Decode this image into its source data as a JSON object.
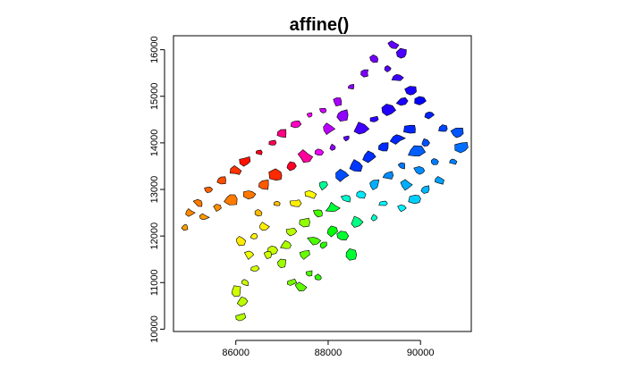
{
  "chart_data": {
    "type": "scatter",
    "title": "affine()",
    "xlabel": "",
    "ylabel": "",
    "xlim": [
      84650,
      91100
    ],
    "ylim": [
      9950,
      16300
    ],
    "x_ticks": [
      86000,
      88000,
      90000
    ],
    "x_tick_labels": [
      "86000",
      "88000",
      "90000"
    ],
    "y_ticks": [
      10000,
      11000,
      12000,
      13000,
      14000,
      15000,
      16000
    ],
    "y_tick_labels": [
      "10000",
      "11000",
      "12000",
      "13000",
      "14000",
      "15000",
      "16000"
    ],
    "grid": false,
    "legend": "none",
    "color_scheme": "rainbow hue",
    "series": [
      {
        "values": [
          [
            86100,
            10250
          ],
          [
            86150,
            10600
          ],
          [
            86000,
            10800
          ],
          [
            86200,
            11000
          ],
          [
            86400,
            11300
          ],
          [
            86300,
            11600
          ],
          [
            86100,
            11900
          ],
          [
            86400,
            12000
          ],
          [
            86600,
            12200
          ],
          [
            86800,
            11700
          ],
          [
            87000,
            11400
          ],
          [
            87200,
            11000
          ],
          [
            87400,
            10900
          ],
          [
            87600,
            11200
          ],
          [
            87800,
            11100
          ],
          [
            86700,
            11600
          ],
          [
            87100,
            11800
          ],
          [
            87500,
            11600
          ],
          [
            87700,
            11900
          ],
          [
            87900,
            11800
          ],
          [
            88100,
            12100
          ],
          [
            88300,
            12000
          ],
          [
            88600,
            12300
          ],
          [
            88500,
            11600
          ],
          [
            89000,
            12400
          ],
          [
            89200,
            12700
          ],
          [
            89600,
            12600
          ],
          [
            89900,
            12800
          ],
          [
            90100,
            13000
          ],
          [
            90400,
            13200
          ],
          [
            90700,
            13600
          ],
          [
            90900,
            13900
          ],
          [
            90800,
            14200
          ],
          [
            90500,
            14300
          ],
          [
            90200,
            14600
          ],
          [
            90000,
            14900
          ],
          [
            89800,
            15100
          ],
          [
            89500,
            15400
          ],
          [
            89300,
            15600
          ],
          [
            89000,
            15800
          ],
          [
            89400,
            16100
          ],
          [
            89600,
            15900
          ],
          [
            88800,
            15500
          ],
          [
            88500,
            15200
          ],
          [
            88200,
            14900
          ],
          [
            87900,
            14700
          ],
          [
            87600,
            14600
          ],
          [
            87300,
            14400
          ],
          [
            87000,
            14200
          ],
          [
            86800,
            14000
          ],
          [
            86500,
            13800
          ],
          [
            86200,
            13600
          ],
          [
            86000,
            13400
          ],
          [
            85700,
            13200
          ],
          [
            85400,
            13000
          ],
          [
            85200,
            12700
          ],
          [
            85000,
            12500
          ],
          [
            84900,
            12200
          ],
          [
            85300,
            12400
          ],
          [
            85600,
            12600
          ],
          [
            85900,
            12800
          ],
          [
            86300,
            12900
          ],
          [
            86600,
            13100
          ],
          [
            86900,
            13300
          ],
          [
            87200,
            13500
          ],
          [
            87500,
            13700
          ],
          [
            87800,
            13800
          ],
          [
            88100,
            13900
          ],
          [
            88400,
            14100
          ],
          [
            88700,
            14300
          ],
          [
            89000,
            14500
          ],
          [
            89300,
            14700
          ],
          [
            89600,
            14900
          ],
          [
            89900,
            13800
          ],
          [
            89600,
            13500
          ],
          [
            89300,
            13300
          ],
          [
            89000,
            13100
          ],
          [
            88700,
            12900
          ],
          [
            88400,
            12800
          ],
          [
            88100,
            12600
          ],
          [
            87800,
            12500
          ],
          [
            87500,
            12300
          ],
          [
            87200,
            12100
          ],
          [
            86900,
            12700
          ],
          [
            86500,
            12500
          ],
          [
            88600,
            13500
          ],
          [
            88900,
            13700
          ],
          [
            89200,
            13900
          ],
          [
            89500,
            14100
          ],
          [
            89800,
            14300
          ],
          [
            90100,
            14000
          ],
          [
            90300,
            13600
          ],
          [
            90000,
            13400
          ],
          [
            89700,
            13100
          ],
          [
            88300,
            13300
          ],
          [
            87900,
            13100
          ],
          [
            87600,
            12900
          ],
          [
            87300,
            12700
          ],
          [
            88000,
            14300
          ],
          [
            88300,
            14600
          ]
        ]
      }
    ]
  }
}
